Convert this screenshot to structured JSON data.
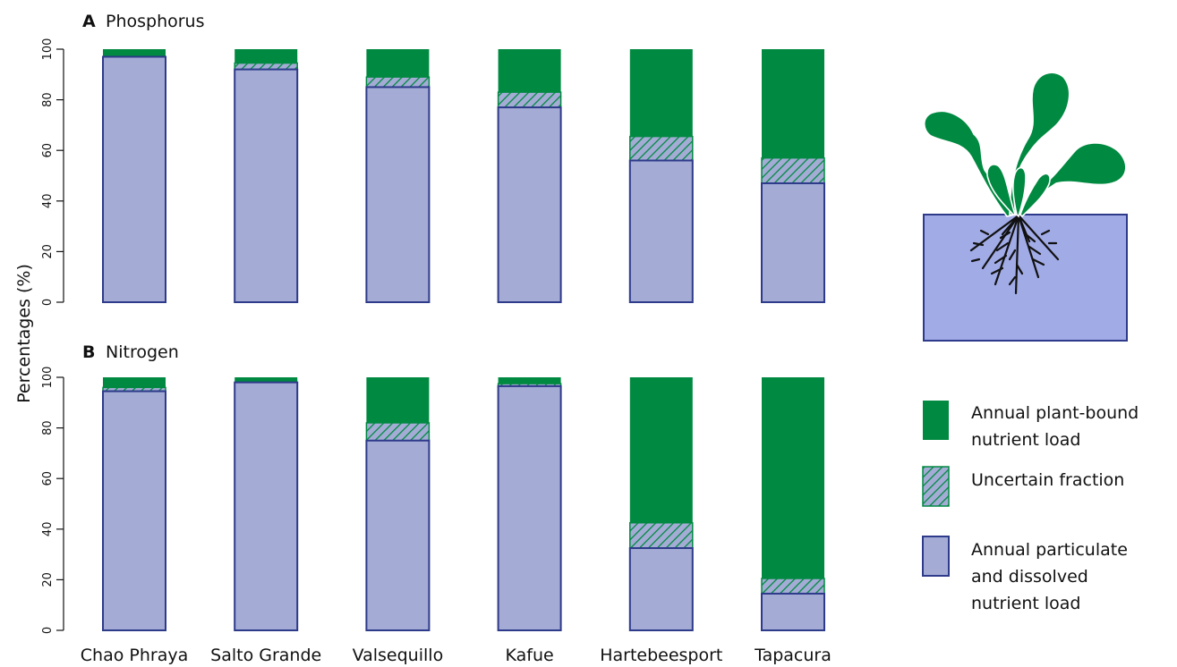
{
  "chart_data": [
    {
      "type": "bar",
      "stacked": true,
      "panel_letter": "A",
      "title": "Phosphorus",
      "ylabel": "Percentages (%)",
      "ylim": [
        0,
        100
      ],
      "yticks": [
        0,
        20,
        40,
        60,
        80,
        100
      ],
      "categories": [
        "Chao Phraya",
        "Salto Grande",
        "Valsequillo",
        "Kafue",
        "Hartebeesport",
        "Tapacura"
      ],
      "series": [
        {
          "name": "Annual particulate and dissolved nutrient load",
          "values": [
            97,
            92,
            85,
            77,
            56,
            47
          ]
        },
        {
          "name": "Uncertain fraction",
          "values": [
            0,
            2.5,
            4,
            6,
            9.5,
            10
          ]
        },
        {
          "name": "Annual plant-bound nutrient load",
          "values": [
            3,
            5.5,
            11,
            17,
            34.5,
            43
          ]
        }
      ]
    },
    {
      "type": "bar",
      "stacked": true,
      "panel_letter": "B",
      "title": "Nitrogen",
      "ylabel": "Percentages (%)",
      "ylim": [
        0,
        100
      ],
      "yticks": [
        0,
        20,
        40,
        60,
        80,
        100
      ],
      "categories": [
        "Chao Phraya",
        "Salto Grande",
        "Valsequillo",
        "Kafue",
        "Hartebeesport",
        "Tapacura"
      ],
      "series": [
        {
          "name": "Annual particulate and dissolved nutrient load",
          "values": [
            94.5,
            98,
            75,
            96.5,
            32.5,
            14.5
          ]
        },
        {
          "name": "Uncertain fraction",
          "values": [
            1.5,
            0,
            7,
            1,
            10,
            6
          ]
        },
        {
          "name": "Annual plant-bound nutrient load",
          "values": [
            4,
            2,
            18,
            2.5,
            57.5,
            79.5
          ]
        }
      ]
    }
  ],
  "legend": {
    "items": [
      {
        "lines": [
          "Annual plant-bound",
          "nutrient load"
        ],
        "kind": "plant"
      },
      {
        "lines": [
          "Uncertain fraction"
        ],
        "kind": "uncertain"
      },
      {
        "lines": [
          "Annual particulate",
          "and dissolved",
          "nutrient load"
        ],
        "kind": "dissolved"
      }
    ]
  },
  "colors": {
    "plant": "#008940",
    "dissolved": "#a4acd6",
    "outline": "#2e3a8a",
    "water": "#a1abe6",
    "leaf_vein": "#ffffff",
    "roots": "#111111"
  },
  "illustration": {
    "icon": "water-hyacinth-plant-icon"
  }
}
